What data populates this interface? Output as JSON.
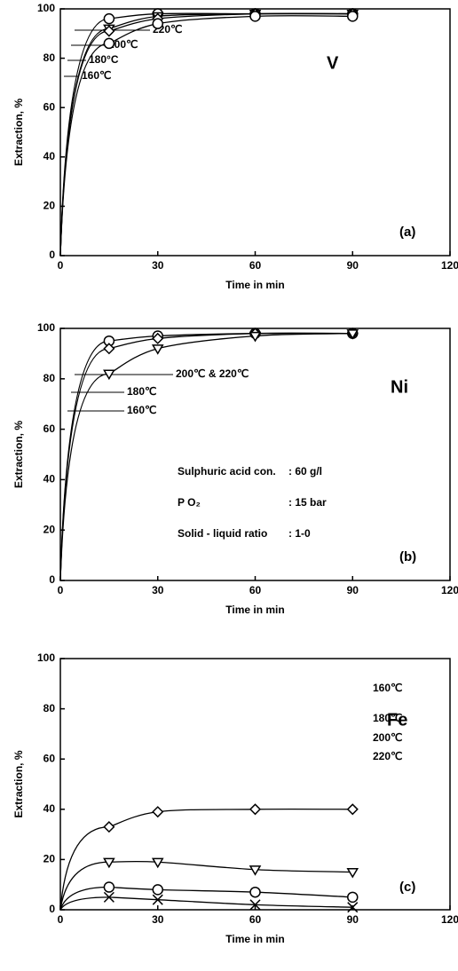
{
  "chart_data": [
    {
      "type": "line",
      "element": "V",
      "panel": "(a)",
      "xlabel": "Time in min",
      "ylabel": "Extraction, %",
      "x": [
        15,
        30,
        60,
        90
      ],
      "xlim": [
        0,
        120
      ],
      "xticks": [
        0,
        30,
        60,
        90,
        120
      ],
      "ylim": [
        0,
        100
      ],
      "yticks": [
        0,
        20,
        40,
        60,
        80,
        100
      ],
      "series": [
        {
          "name": "220℃",
          "color": "#000000",
          "marker": "circle",
          "values": [
            96,
            98,
            98,
            98
          ]
        },
        {
          "name": "200℃",
          "color": "#000000",
          "marker": "triangle-down",
          "values": [
            92,
            97,
            98,
            98
          ]
        },
        {
          "name": "180°C",
          "color": "#000000",
          "marker": "diamond",
          "values": [
            91,
            96,
            98,
            98
          ]
        },
        {
          "name": "160℃",
          "color": "#000000",
          "marker": "circle",
          "values": [
            86,
            94,
            97,
            97
          ]
        }
      ]
    },
    {
      "type": "line",
      "element": "Ni",
      "panel": "(b)",
      "xlabel": "Time in min",
      "ylabel": "Extraction, %",
      "x": [
        15,
        30,
        60,
        90
      ],
      "xlim": [
        0,
        120
      ],
      "xticks": [
        0,
        30,
        60,
        90,
        120
      ],
      "ylim": [
        0,
        100
      ],
      "yticks": [
        0,
        20,
        40,
        60,
        80,
        100
      ],
      "conditions": [
        [
          "Sulphuric acid con.",
          ": 60 g/l"
        ],
        [
          "P O₂",
          ": 15 bar"
        ],
        [
          "Solid - liquid ratio",
          ": 1-0"
        ]
      ],
      "series": [
        {
          "name": "200℃ & 220℃",
          "color": "#000000",
          "marker": "circle",
          "values": [
            95,
            97,
            98,
            98
          ]
        },
        {
          "name": "180℃",
          "color": "#000000",
          "marker": "diamond",
          "values": [
            92,
            96,
            98,
            98
          ]
        },
        {
          "name": "160℃",
          "color": "#000000",
          "marker": "triangle-down",
          "values": [
            82,
            92,
            97,
            98
          ]
        }
      ]
    },
    {
      "type": "line",
      "element": "Fe",
      "panel": "(c)",
      "xlabel": "Time in min",
      "ylabel": "Extraction, %",
      "x": [
        15,
        30,
        60,
        90
      ],
      "xlim": [
        0,
        120
      ],
      "xticks": [
        0,
        30,
        60,
        90,
        120
      ],
      "ylim": [
        0,
        100
      ],
      "yticks": [
        0,
        20,
        40,
        60,
        80,
        100
      ],
      "series": [
        {
          "name": "160℃",
          "color": "#000000",
          "marker": "diamond",
          "values": [
            33,
            39,
            40,
            40
          ]
        },
        {
          "name": "180℃",
          "color": "#000000",
          "marker": "triangle-down",
          "values": [
            19,
            19,
            16,
            15
          ]
        },
        {
          "name": "200℃",
          "color": "#000000",
          "marker": "circle",
          "values": [
            9,
            8,
            7,
            5
          ]
        },
        {
          "name": "220℃",
          "color": "#000000",
          "marker": "x",
          "values": [
            5,
            4,
            2,
            1
          ]
        }
      ]
    }
  ]
}
